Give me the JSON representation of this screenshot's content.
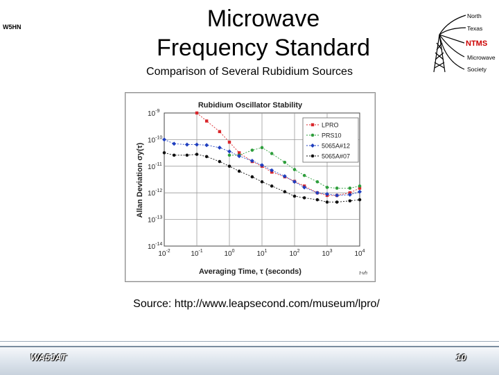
{
  "header": {
    "callsign": "W5HN",
    "title_line1": "Microwave",
    "title_line2": "Frequency Standard",
    "subtitle": "Comparison of Several Rubidium Sources"
  },
  "logo": {
    "north": "North",
    "texas": "Texas",
    "ntms": "NTMS",
    "microwave": "Microwave",
    "society": "Society",
    "accent_color": "#cc0000"
  },
  "source_text": "Source: http://www.leapsecond.com/museum/lpro/",
  "footer": {
    "left": "WA5JAT",
    "right": "10"
  },
  "chart_data": {
    "type": "line",
    "title": "Rubidium Oscillator Stability",
    "xlabel": "Averaging Time, τ (seconds)",
    "ylabel": "Allan Deviation σy(τ)",
    "note": "t-vh",
    "x_scale": "log",
    "y_scale": "log",
    "xlim_exp": [
      -2,
      4
    ],
    "ylim_exp": [
      -14,
      -9
    ],
    "x_tick_labels": [
      [
        "10",
        "-2"
      ],
      [
        "10",
        "-1"
      ],
      [
        "10",
        "0"
      ],
      [
        "10",
        "1"
      ],
      [
        "10",
        "2"
      ],
      [
        "10",
        "3"
      ],
      [
        "10",
        "4"
      ]
    ],
    "y_tick_labels": [
      [
        "10",
        "-9"
      ],
      [
        "10",
        "-10"
      ],
      [
        "10",
        "-11"
      ],
      [
        "10",
        "-12"
      ],
      [
        "10",
        "-13"
      ],
      [
        "10",
        "-14"
      ]
    ],
    "grid": true,
    "legend_position": "top-right",
    "series": [
      {
        "name": "LPRO",
        "color": "#d9262b",
        "marker": "square",
        "x": [
          0.1,
          0.2,
          0.5,
          1,
          2,
          5,
          10,
          20,
          50,
          100,
          200,
          500,
          1000,
          2000,
          5000,
          10000
        ],
        "y": [
          1e-09,
          5e-10,
          2e-10,
          8e-11,
          3.2e-11,
          1.5e-11,
          1e-11,
          6e-12,
          4e-12,
          2.7e-12,
          1.8e-12,
          1e-12,
          8e-13,
          8e-13,
          1e-12,
          1.5e-12
        ]
      },
      {
        "name": "PRS10",
        "color": "#2e9e3c",
        "marker": "circle",
        "x": [
          1,
          2,
          5,
          10,
          20,
          50,
          100,
          200,
          500,
          1000,
          2000,
          5000,
          10000
        ],
        "y": [
          2.6e-11,
          2.6e-11,
          4e-11,
          5e-11,
          3e-11,
          1.4e-11,
          7.5e-12,
          4.5e-12,
          2.6e-12,
          1.6e-12,
          1.5e-12,
          1.5e-12,
          1.8e-12
        ]
      },
      {
        "name": "5065A#12",
        "color": "#1f3fbf",
        "marker": "diamond",
        "x": [
          0.01,
          0.02,
          0.05,
          0.1,
          0.2,
          0.5,
          1,
          2,
          5,
          10,
          20,
          50,
          100,
          200,
          500,
          1000,
          2000,
          5000,
          10000
        ],
        "y": [
          1e-10,
          7e-11,
          6.5e-11,
          6.5e-11,
          6.2e-11,
          5e-11,
          3.6e-11,
          2.4e-11,
          1.6e-11,
          1.1e-11,
          7e-12,
          4.2e-12,
          2.6e-12,
          1.6e-12,
          1e-12,
          9e-13,
          8e-13,
          8.5e-13,
          1.1e-12
        ]
      },
      {
        "name": "5065A#07",
        "color": "#111111",
        "marker": "circle",
        "x": [
          0.01,
          0.02,
          0.05,
          0.1,
          0.2,
          0.5,
          1,
          2,
          5,
          10,
          20,
          50,
          100,
          200,
          500,
          1000,
          2000,
          5000,
          10000
        ],
        "y": [
          3.2e-11,
          2.6e-11,
          2.6e-11,
          2.8e-11,
          2.3e-11,
          1.5e-11,
          1e-11,
          6.5e-12,
          4e-12,
          2.6e-12,
          1.8e-12,
          1.1e-12,
          7.5e-13,
          6.5e-13,
          5.5e-13,
          4.5e-13,
          4.5e-13,
          5e-13,
          5.5e-13
        ]
      }
    ]
  }
}
